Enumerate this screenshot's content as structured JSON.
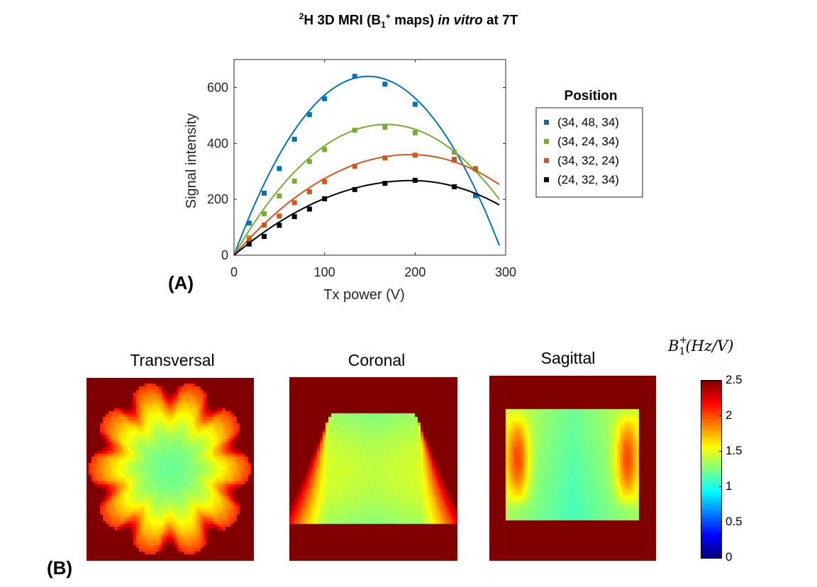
{
  "title": {
    "nucleus_sup": "2",
    "part1": "H 3D MRI (B",
    "b_sub": "1",
    "b_sup": "+",
    "part2": " maps) ",
    "italic": "in vitro",
    "part3": " at 7T"
  },
  "panel_labels": {
    "a": "(A)",
    "b": "(B)"
  },
  "chart_data": [
    {
      "type": "scatter",
      "xlabel": "Tx power (V)",
      "ylabel": "Signal intensity",
      "xlim": [
        0,
        300
      ],
      "ylim": [
        0,
        700
      ],
      "xticks": [
        0,
        100,
        200,
        300
      ],
      "yticks": [
        0,
        200,
        400,
        600
      ],
      "legend": {
        "title": "Position",
        "placement": "outside-right"
      },
      "series": [
        {
          "name": "(34, 48, 34)",
          "color": "#0072BD",
          "x": [
            16.7,
            33.3,
            50,
            66.7,
            83.3,
            100,
            133.3,
            166.7,
            200,
            243.3,
            266.7
          ],
          "y": [
            115,
            222,
            310,
            415,
            503,
            560,
            640,
            612,
            540,
            340,
            213
          ],
          "fit_peak": [
            148,
            640
          ],
          "fit_end": [
            293,
            35
          ]
        },
        {
          "name": "(34, 24, 34)",
          "color": "#77AC30",
          "x": [
            16.7,
            33.3,
            50,
            66.7,
            83.3,
            100,
            133.3,
            166.7,
            200,
            243.3,
            266.7
          ],
          "y": [
            62,
            148,
            212,
            265,
            335,
            378,
            447,
            458,
            438,
            368,
            310
          ],
          "fit_peak": [
            168,
            468
          ],
          "fit_end": [
            293,
            200
          ]
        },
        {
          "name": "(34, 32, 24)",
          "color": "#D95319",
          "x": [
            16.7,
            33.3,
            50,
            66.7,
            83.3,
            100,
            133.3,
            166.7,
            200,
            243.3,
            266.7
          ],
          "y": [
            52,
            108,
            140,
            188,
            227,
            263,
            318,
            348,
            358,
            343,
            308
          ],
          "fit_peak": [
            195,
            360
          ],
          "fit_end": [
            293,
            253
          ]
        },
        {
          "name": "(24, 32, 34)",
          "color": "#000000",
          "x": [
            16.7,
            33.3,
            50,
            66.7,
            83.3,
            100,
            133.3,
            166.7,
            200,
            243.3
          ],
          "y": [
            40,
            67,
            107,
            138,
            165,
            202,
            235,
            257,
            268,
            245
          ],
          "fit_peak": [
            196,
            267
          ],
          "fit_end": [
            293,
            180
          ]
        }
      ]
    },
    {
      "type": "heatmap",
      "colormap": "jet",
      "maps": [
        {
          "title": "Transversal"
        },
        {
          "title": "Coronal"
        },
        {
          "title": "Sagittal"
        }
      ],
      "colorbar": {
        "label_main": "B",
        "label_sub": "1",
        "label_sup": "+",
        "label_unit": "(Hz/V)",
        "range": [
          0,
          2.5
        ],
        "ticks": [
          "2.5",
          "2",
          "1.5",
          "1",
          "0.5",
          "0"
        ]
      }
    }
  ]
}
